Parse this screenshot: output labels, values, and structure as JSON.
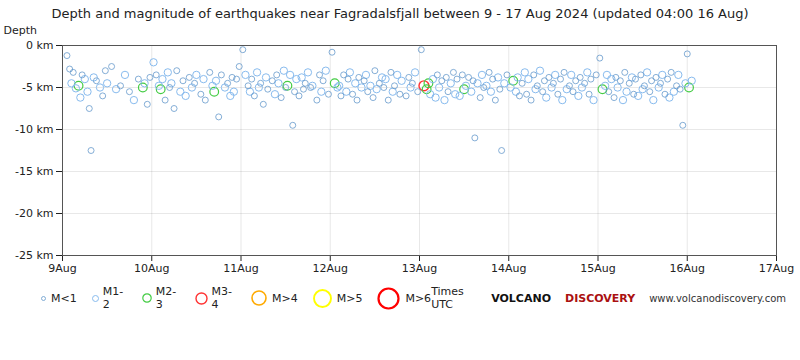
{
  "chart_data": {
    "type": "scatter",
    "title": "Depth and magnitude of earthquakes near Fagradalsfjall between 9 - 17 Aug 2024 (updated 04:00 16 Aug)",
    "ylabel": "Depth",
    "xlim": [
      0,
      8
    ],
    "ylim": [
      -25,
      0
    ],
    "xticks": [
      {
        "value": 0,
        "label": "9Aug"
      },
      {
        "value": 1,
        "label": "10Aug"
      },
      {
        "value": 2,
        "label": "11Aug"
      },
      {
        "value": 3,
        "label": "12Aug"
      },
      {
        "value": 4,
        "label": "13Aug"
      },
      {
        "value": 5,
        "label": "14Aug"
      },
      {
        "value": 6,
        "label": "15Aug"
      },
      {
        "value": 7,
        "label": "16Aug"
      },
      {
        "value": 8,
        "label": "17Aug"
      }
    ],
    "yticks": [
      {
        "value": 0,
        "label": "0 km"
      },
      {
        "value": -5,
        "label": "-5 km"
      },
      {
        "value": -10,
        "label": "-10 km"
      },
      {
        "value": -15,
        "label": "-15 km"
      },
      {
        "value": -20,
        "label": "-20 km"
      },
      {
        "value": -25,
        "label": "-25 km"
      }
    ],
    "grid": true,
    "annotations": [
      "Times UTC",
      "VOLCANO",
      "DISCOVERY",
      "www.volcanodiscovery.com"
    ],
    "series": [
      {
        "name": "M<1",
        "color": "#6699cc",
        "x": [
          0.05,
          0.08,
          0.12,
          0.22,
          0.3,
          0.32,
          0.38,
          0.45,
          0.48,
          0.55,
          0.65,
          0.75,
          0.85,
          0.95,
          0.98,
          1.05,
          1.15,
          1.2,
          1.25,
          1.28,
          1.35,
          1.42,
          1.48,
          1.55,
          1.6,
          1.65,
          1.75,
          1.78,
          1.85,
          1.9,
          1.95,
          1.98,
          2.02,
          2.08,
          2.12,
          2.15,
          2.22,
          2.25,
          2.3,
          2.35,
          2.4,
          2.45,
          2.5,
          2.58,
          2.6,
          2.65,
          2.7,
          2.72,
          2.78,
          2.85,
          2.88,
          2.92,
          2.98,
          3.02,
          3.12,
          3.15,
          3.2,
          3.25,
          3.3,
          3.32,
          3.38,
          3.42,
          3.48,
          3.5,
          3.55,
          3.6,
          3.65,
          3.68,
          3.72,
          3.78,
          3.85,
          3.88,
          3.92,
          3.98,
          4.02,
          4.2,
          4.25,
          4.3,
          4.32,
          4.38,
          4.42,
          4.48,
          4.55,
          4.6,
          4.62,
          4.68,
          4.72,
          4.78,
          4.82,
          4.85,
          4.9,
          4.92,
          4.98,
          5.12,
          5.15,
          5.2,
          5.25,
          5.28,
          5.32,
          5.38,
          5.4,
          5.45,
          5.5,
          5.55,
          5.58,
          5.62,
          5.68,
          5.72,
          5.75,
          5.8,
          5.85,
          5.9,
          5.92,
          5.98,
          6.02,
          6.12,
          6.18,
          6.2,
          6.25,
          6.3,
          6.35,
          6.4,
          6.42,
          6.48,
          6.52,
          6.58,
          6.6,
          6.65,
          6.7,
          6.75,
          6.78,
          6.82,
          6.88,
          6.92,
          6.95,
          7.0
        ],
        "values": [
          -1.2,
          -2.8,
          -3.2,
          -3.5,
          -7.5,
          -12.5,
          -4.2,
          -6.0,
          -3.0,
          -2.5,
          -4.8,
          -5.5,
          -4.0,
          -7.0,
          -3.8,
          -3.5,
          -6.5,
          -5.0,
          -7.5,
          -3.0,
          -4.2,
          -3.8,
          -4.5,
          -5.8,
          -6.5,
          -3.2,
          -8.5,
          -3.5,
          -4.5,
          -3.8,
          -4.0,
          -2.5,
          -0.5,
          -4.8,
          -4.0,
          -6.0,
          -4.5,
          -7.0,
          -5.2,
          -4.2,
          -3.5,
          -6.2,
          -5.0,
          -9.5,
          -5.5,
          -6.0,
          -5.2,
          -4.5,
          -5.0,
          -6.5,
          -3.5,
          -4.2,
          -5.8,
          -0.8,
          -6.0,
          -3.5,
          -4.0,
          -5.8,
          -6.5,
          -3.8,
          -4.2,
          -5.5,
          -6.2,
          -3.0,
          -4.5,
          -5.0,
          -6.5,
          -3.2,
          -4.8,
          -5.8,
          -6.0,
          -3.8,
          -4.5,
          -5.5,
          -0.5,
          -3.5,
          -4.2,
          -3.8,
          -5.5,
          -3.2,
          -4.0,
          -3.5,
          -3.8,
          -4.2,
          -11.0,
          -6.2,
          -5.0,
          -3.2,
          -4.0,
          -6.5,
          -5.2,
          -12.5,
          -3.5,
          -6.0,
          -4.5,
          -5.8,
          -6.5,
          -3.5,
          -4.8,
          -5.5,
          -4.2,
          -3.8,
          -4.5,
          -5.8,
          -4.0,
          -3.2,
          -4.8,
          -5.5,
          -4.2,
          -3.8,
          -4.5,
          -5.8,
          -4.0,
          -3.5,
          -1.5,
          -5.5,
          -6.2,
          -3.8,
          -4.2,
          -3.2,
          -4.5,
          -5.8,
          -4.0,
          -3.5,
          -4.8,
          -5.5,
          -4.2,
          -3.8,
          -4.5,
          -5.8,
          -4.0,
          -3.2,
          -4.8,
          -5.2,
          -9.5,
          -1.0
        ]
      },
      {
        "name": "M1-2",
        "color": "#88bbee",
        "x": [
          0.1,
          0.15,
          0.2,
          0.25,
          0.28,
          0.35,
          0.42,
          0.5,
          0.6,
          0.7,
          0.8,
          0.92,
          1.02,
          1.08,
          1.12,
          1.18,
          1.22,
          1.32,
          1.38,
          1.45,
          1.5,
          1.58,
          1.68,
          1.72,
          1.82,
          1.88,
          1.92,
          2.05,
          2.1,
          2.18,
          2.2,
          2.28,
          2.38,
          2.42,
          2.48,
          2.55,
          2.62,
          2.68,
          2.75,
          2.8,
          2.9,
          2.95,
          3.08,
          3.1,
          3.18,
          3.22,
          3.28,
          3.35,
          3.4,
          3.45,
          3.52,
          3.58,
          3.62,
          3.7,
          3.75,
          3.8,
          3.9,
          3.95,
          4.12,
          4.15,
          4.18,
          4.22,
          4.28,
          4.35,
          4.4,
          4.45,
          4.52,
          4.58,
          4.65,
          4.7,
          4.75,
          4.8,
          4.88,
          4.95,
          5.02,
          5.08,
          5.1,
          5.18,
          5.22,
          5.3,
          5.35,
          5.42,
          5.48,
          5.52,
          5.6,
          5.65,
          5.7,
          5.78,
          5.82,
          5.88,
          5.95,
          6.08,
          6.1,
          6.15,
          6.22,
          6.28,
          6.32,
          6.38,
          6.45,
          6.5,
          6.55,
          6.62,
          6.68,
          6.72,
          6.8,
          6.85,
          6.9,
          6.98,
          7.05
        ],
        "values": [
          -4.5,
          -5.1,
          -6.2,
          -4.0,
          -5.5,
          -3.8,
          -5.0,
          -4.5,
          -5.2,
          -3.5,
          -6.5,
          -4.5,
          -2.0,
          -4.8,
          -4.0,
          -3.2,
          -4.5,
          -5.5,
          -6.0,
          -5.0,
          -3.5,
          -4.0,
          -4.8,
          -4.2,
          -5.0,
          -6.0,
          -5.5,
          -3.5,
          -5.5,
          -3.2,
          -5.0,
          -3.8,
          -5.8,
          -4.5,
          -3.0,
          -3.5,
          -4.0,
          -3.8,
          -3.2,
          -4.8,
          -5.5,
          -3.0,
          -5.0,
          -4.8,
          -5.5,
          -3.2,
          -4.5,
          -5.0,
          -3.5,
          -4.8,
          -5.2,
          -3.8,
          -4.0,
          -5.5,
          -3.5,
          -4.2,
          -5.0,
          -3.2,
          -5.8,
          -4.0,
          -6.2,
          -5.0,
          -6.5,
          -4.5,
          -5.8,
          -6.0,
          -4.8,
          -5.5,
          -4.5,
          -3.5,
          -4.8,
          -5.5,
          -3.8,
          -4.5,
          -5.0,
          -5.5,
          -3.8,
          -3.2,
          -4.0,
          -5.2,
          -3.0,
          -6.2,
          -5.0,
          -3.5,
          -6.5,
          -5.2,
          -3.5,
          -6.0,
          -5.0,
          -3.2,
          -6.5,
          -4.8,
          -3.5,
          -4.0,
          -5.0,
          -6.5,
          -5.5,
          -3.8,
          -6.0,
          -5.2,
          -3.2,
          -6.5,
          -5.0,
          -3.5,
          -6.2,
          -5.5,
          -3.5,
          -4.5,
          -4.2
        ]
      },
      {
        "name": "M2-3",
        "color": "#44cc44",
        "x": [
          0.18,
          0.9,
          1.1,
          1.7,
          2.52,
          3.05,
          4.08,
          4.1,
          4.5,
          5.05,
          6.05,
          7.02
        ],
        "values": [
          -4.8,
          -5.0,
          -5.2,
          -5.5,
          -4.8,
          -4.5,
          -5.2,
          -4.5,
          -5.2,
          -4.2,
          -5.2,
          -5.0
        ]
      },
      {
        "name": "M3-4",
        "color": "#ff3333",
        "x": [
          4.05
        ],
        "values": [
          -4.8
        ]
      },
      {
        "name": "M>4",
        "color": "#ffaa00",
        "x": [],
        "values": []
      },
      {
        "name": "M>5",
        "color": "#ffff00",
        "x": [],
        "values": []
      },
      {
        "name": "M>6",
        "color": "#ff0000",
        "x": [],
        "values": []
      }
    ]
  }
}
